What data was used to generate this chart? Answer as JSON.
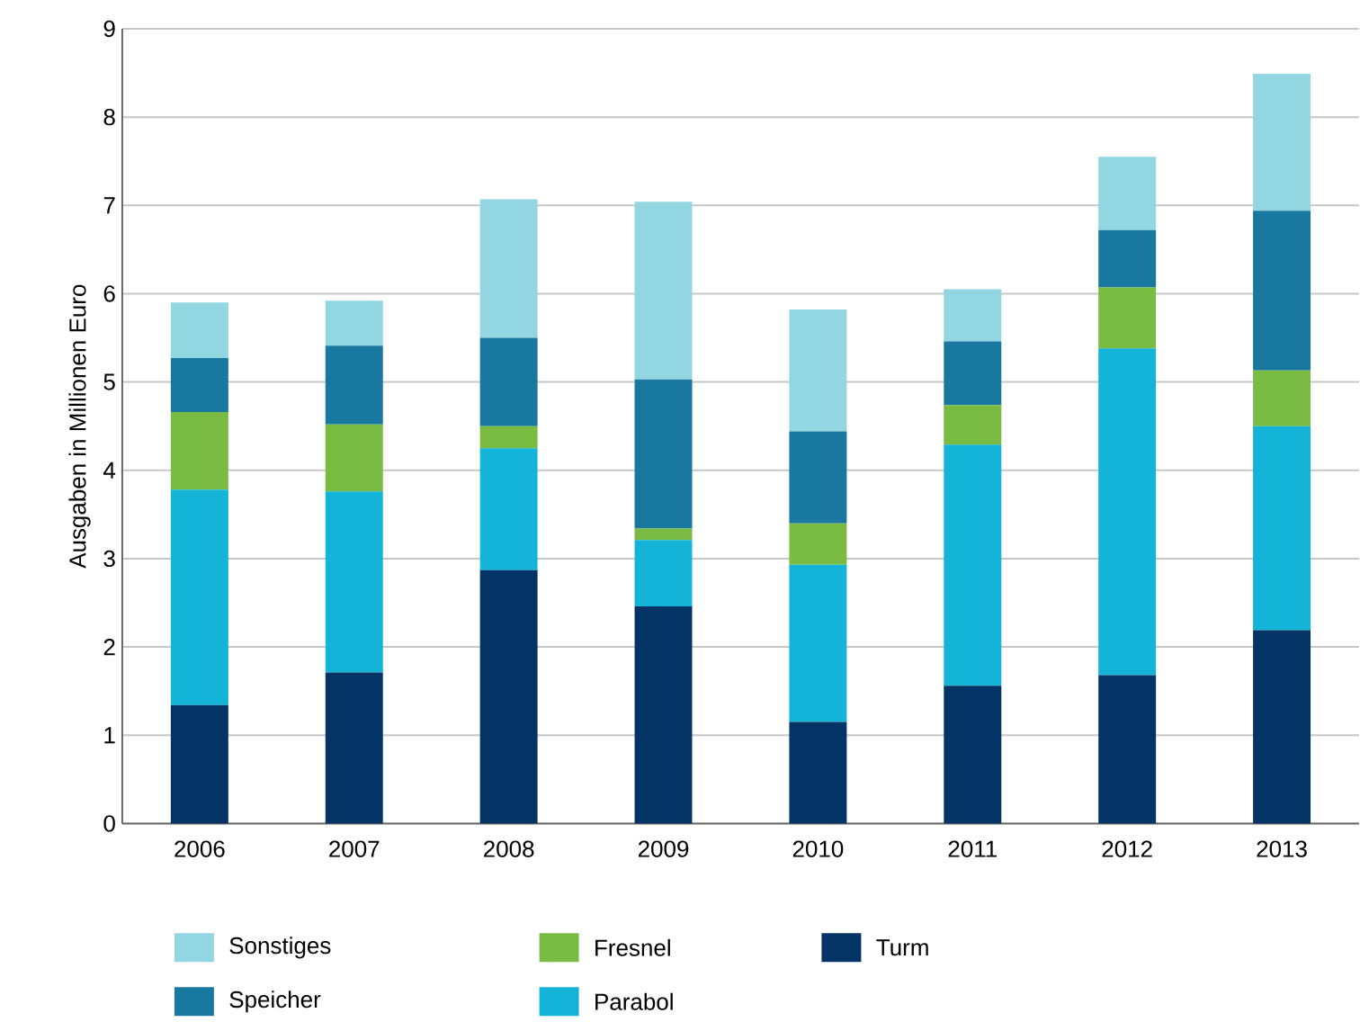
{
  "chart_data": {
    "type": "bar",
    "stacked": true,
    "ylabel": "Ausgaben in Millionen Euro",
    "categories": [
      "2006",
      "2007",
      "2008",
      "2009",
      "2010",
      "2011",
      "2012",
      "2013"
    ],
    "series": [
      {
        "name": "Turm",
        "color": "#043366",
        "values": [
          1.34,
          1.71,
          2.87,
          2.46,
          1.15,
          1.56,
          1.68,
          2.19
        ]
      },
      {
        "name": "Parabol",
        "color": "#13b4d8",
        "values": [
          2.44,
          2.05,
          1.38,
          0.75,
          1.78,
          2.73,
          3.7,
          2.31
        ]
      },
      {
        "name": "Fresnel",
        "color": "#79bb43",
        "values": [
          0.88,
          0.76,
          0.25,
          0.13,
          0.47,
          0.45,
          0.69,
          0.63
        ]
      },
      {
        "name": "Speicher",
        "color": "#19789f",
        "values": [
          0.61,
          0.89,
          1.0,
          1.69,
          1.04,
          0.72,
          0.65,
          1.81
        ]
      },
      {
        "name": "Sonstiges",
        "color": "#92d6e2",
        "values": [
          0.63,
          0.51,
          1.57,
          2.01,
          1.38,
          0.59,
          0.83,
          1.55
        ]
      }
    ],
    "ylim": [
      0,
      9
    ],
    "yticks": [
      0,
      1,
      2,
      3,
      4,
      5,
      6,
      7,
      8,
      9
    ],
    "grid": "y",
    "legend": "bottom"
  }
}
